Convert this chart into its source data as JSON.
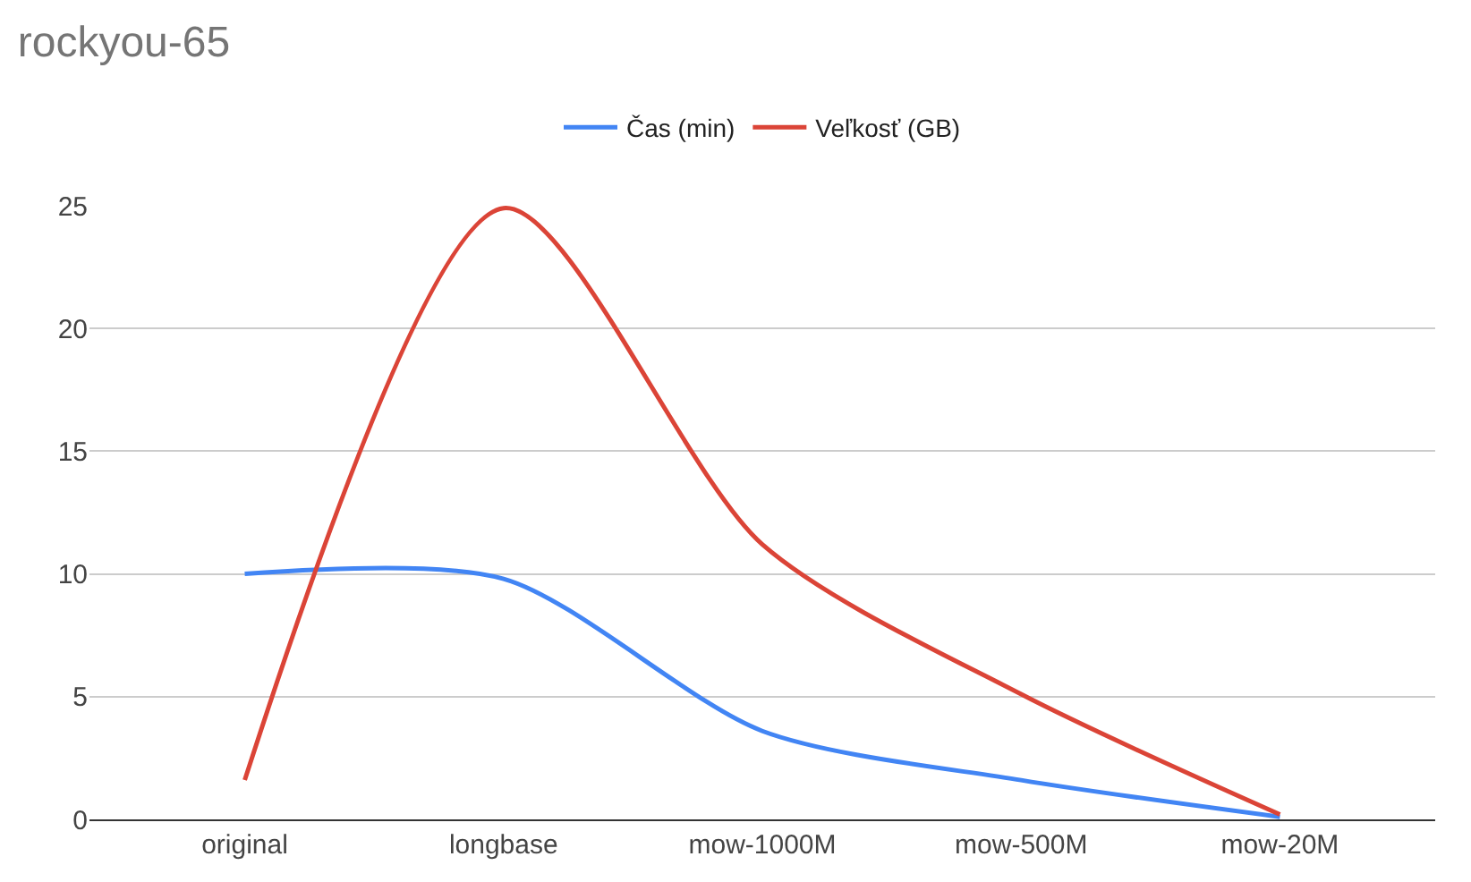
{
  "chart_data": {
    "type": "line",
    "title": "rockyou-65",
    "categories": [
      "original",
      "longbase",
      "mow-1000M",
      "mow-500M",
      "mow-20M"
    ],
    "series": [
      {
        "name": "Čas (min)",
        "color": "#4285f4",
        "values": [
          10,
          9.8,
          3.6,
          1.6,
          0.1
        ]
      },
      {
        "name": "Veľkosť (GB)",
        "color": "#db4437",
        "values": [
          1.6,
          24.9,
          11.2,
          5.1,
          0.2
        ]
      }
    ],
    "ylim": [
      0,
      25
    ],
    "yticks": [
      0,
      5,
      10,
      15,
      20,
      25
    ],
    "grid": "y",
    "legend": "top",
    "marker": "none",
    "line_style": "solid"
  }
}
